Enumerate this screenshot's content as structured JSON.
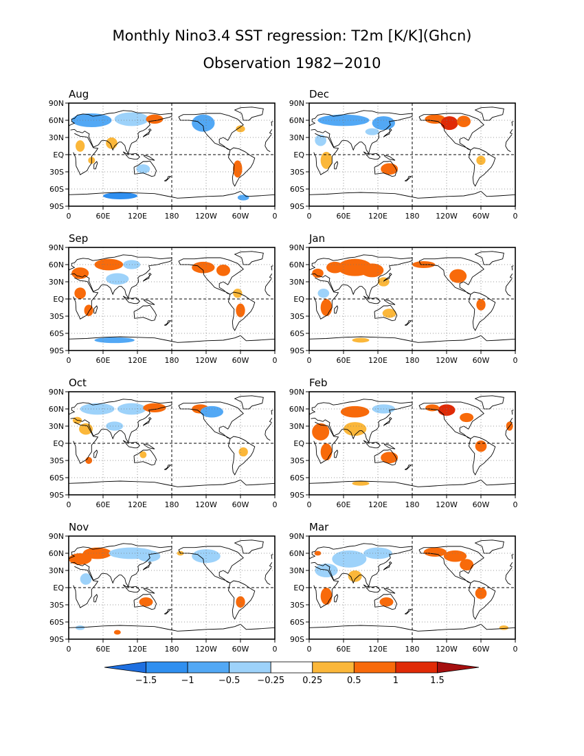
{
  "title_line1": "Monthly Nino3.4 SST regression: T2m [K/K](Ghcn)",
  "title_line2": "Observation 1982−2010",
  "colors": {
    "land_outline": "#000000",
    "dash": "#000000",
    "dot_grid": "#777777",
    "bins": [
      "#1e6fe0",
      "#2f8ff0",
      "#52a8f5",
      "#9dd2fa",
      "#ffffff",
      "#fbb73a",
      "#f86a0a",
      "#e02a06",
      "#a50f0f"
    ]
  },
  "chart_data": {
    "type": "heatmap",
    "title": "Monthly Nino3.4 SST regression: T2m [K/K](Ghcn)",
    "subtitle": "Observation 1982−2010",
    "units": "K/K",
    "x_ticks": [
      "0",
      "60E",
      "120E",
      "180",
      "120W",
      "60W",
      "0"
    ],
    "y_ticks": [
      "90N",
      "60N",
      "30N",
      "EQ",
      "30S",
      "60S",
      "90S"
    ],
    "colorbar": {
      "levels": [
        "−1.5",
        "−1",
        "−0.5",
        "−0.25",
        "0.25",
        "0.5",
        "1",
        "1.5"
      ],
      "level_values": [
        -1.5,
        -1,
        -0.5,
        -0.25,
        0.25,
        0.5,
        1,
        1.5
      ]
    },
    "panels": [
      {
        "month": "Aug",
        "blobs": [
          [
            40,
            60,
            35,
            12,
            -0.6
          ],
          [
            110,
            62,
            30,
            12,
            -0.4
          ],
          [
            150,
            62,
            15,
            8,
            0.7
          ],
          [
            235,
            55,
            20,
            15,
            -0.6
          ],
          [
            20,
            15,
            8,
            10,
            0.3
          ],
          [
            75,
            20,
            10,
            10,
            0.3
          ],
          [
            295,
            -25,
            8,
            15,
            0.6
          ],
          [
            130,
            -25,
            12,
            8,
            -0.4
          ],
          [
            90,
            -72,
            30,
            6,
            -1.1
          ],
          [
            305,
            -75,
            10,
            5,
            -0.7
          ],
          [
            300,
            45,
            8,
            6,
            0.3
          ],
          [
            40,
            -10,
            6,
            6,
            0.3
          ]
        ]
      },
      {
        "month": "Dec",
        "blobs": [
          [
            60,
            60,
            45,
            10,
            -0.7
          ],
          [
            130,
            55,
            20,
            12,
            -0.6
          ],
          [
            220,
            62,
            18,
            8,
            0.9
          ],
          [
            245,
            55,
            15,
            12,
            1.3
          ],
          [
            270,
            58,
            12,
            10,
            0.8
          ],
          [
            20,
            25,
            10,
            10,
            -0.4
          ],
          [
            30,
            -10,
            10,
            15,
            0.4
          ],
          [
            140,
            -25,
            15,
            10,
            0.6
          ],
          [
            300,
            -10,
            8,
            8,
            0.3
          ],
          [
            110,
            40,
            12,
            6,
            -0.4
          ]
        ]
      },
      {
        "month": "Sep",
        "blobs": [
          [
            20,
            45,
            15,
            10,
            0.7
          ],
          [
            70,
            60,
            25,
            10,
            0.6
          ],
          [
            110,
            60,
            15,
            8,
            -0.3
          ],
          [
            85,
            35,
            20,
            10,
            -0.4
          ],
          [
            235,
            55,
            20,
            10,
            0.6
          ],
          [
            270,
            50,
            12,
            10,
            0.7
          ],
          [
            20,
            10,
            10,
            10,
            0.6
          ],
          [
            35,
            -20,
            8,
            10,
            0.7
          ],
          [
            300,
            -20,
            8,
            12,
            0.7
          ],
          [
            80,
            -72,
            35,
            5,
            -0.6
          ],
          [
            295,
            10,
            8,
            8,
            0.4
          ]
        ]
      },
      {
        "month": "Jan",
        "blobs": [
          [
            80,
            55,
            30,
            15,
            0.9
          ],
          [
            110,
            50,
            20,
            12,
            0.8
          ],
          [
            45,
            55,
            15,
            10,
            0.6
          ],
          [
            15,
            45,
            10,
            8,
            0.5
          ],
          [
            200,
            60,
            20,
            6,
            0.6
          ],
          [
            260,
            40,
            15,
            12,
            0.6
          ],
          [
            130,
            30,
            10,
            8,
            0.4
          ],
          [
            30,
            -15,
            10,
            15,
            0.6
          ],
          [
            300,
            -10,
            8,
            10,
            0.6
          ],
          [
            140,
            -25,
            12,
            8,
            0.4
          ],
          [
            90,
            -72,
            15,
            4,
            0.3
          ],
          [
            25,
            10,
            10,
            8,
            -0.4
          ]
        ]
      },
      {
        "month": "Oct",
        "blobs": [
          [
            50,
            60,
            30,
            10,
            -0.4
          ],
          [
            110,
            60,
            25,
            10,
            -0.4
          ],
          [
            150,
            62,
            20,
            8,
            0.6
          ],
          [
            230,
            60,
            15,
            8,
            0.7
          ],
          [
            250,
            55,
            20,
            10,
            -0.6
          ],
          [
            30,
            25,
            12,
            10,
            0.3
          ],
          [
            80,
            30,
            15,
            8,
            -0.4
          ],
          [
            130,
            -20,
            6,
            6,
            0.4
          ],
          [
            305,
            -15,
            8,
            8,
            0.3
          ],
          [
            35,
            -30,
            6,
            6,
            0.5
          ],
          [
            15,
            40,
            8,
            6,
            0.4
          ]
        ]
      },
      {
        "month": "Feb",
        "blobs": [
          [
            80,
            55,
            25,
            10,
            0.5
          ],
          [
            130,
            60,
            20,
            8,
            -0.5
          ],
          [
            240,
            58,
            15,
            10,
            1.4
          ],
          [
            215,
            62,
            12,
            6,
            0.8
          ],
          [
            275,
            45,
            12,
            8,
            0.5
          ],
          [
            20,
            20,
            15,
            15,
            0.7
          ],
          [
            30,
            -15,
            10,
            15,
            0.7
          ],
          [
            80,
            25,
            20,
            12,
            0.4
          ],
          [
            140,
            -25,
            15,
            10,
            0.6
          ],
          [
            300,
            -5,
            10,
            10,
            0.6
          ],
          [
            90,
            -70,
            15,
            4,
            0.4
          ],
          [
            350,
            30,
            6,
            8,
            0.6
          ]
        ]
      },
      {
        "month": "Nov",
        "blobs": [
          [
            20,
            50,
            20,
            10,
            0.8
          ],
          [
            50,
            60,
            25,
            10,
            0.6
          ],
          [
            110,
            60,
            40,
            10,
            -0.4
          ],
          [
            140,
            55,
            20,
            10,
            -0.5
          ],
          [
            240,
            55,
            25,
            12,
            -0.5
          ],
          [
            30,
            15,
            10,
            10,
            -0.3
          ],
          [
            135,
            -25,
            12,
            8,
            0.7
          ],
          [
            300,
            -25,
            8,
            10,
            0.5
          ],
          [
            85,
            -78,
            6,
            4,
            0.5
          ],
          [
            20,
            -70,
            8,
            4,
            -0.3
          ],
          [
            195,
            60,
            6,
            4,
            0.4
          ]
        ]
      },
      {
        "month": "Mar",
        "blobs": [
          [
            30,
            30,
            20,
            12,
            -0.5
          ],
          [
            70,
            50,
            30,
            15,
            -0.4
          ],
          [
            120,
            60,
            25,
            10,
            -0.4
          ],
          [
            220,
            62,
            20,
            8,
            0.7
          ],
          [
            255,
            55,
            20,
            10,
            0.9
          ],
          [
            275,
            40,
            12,
            10,
            0.6
          ],
          [
            30,
            -15,
            10,
            15,
            0.7
          ],
          [
            80,
            20,
            12,
            10,
            0.4
          ],
          [
            135,
            -25,
            12,
            8,
            0.6
          ],
          [
            300,
            -10,
            10,
            10,
            0.6
          ],
          [
            15,
            60,
            6,
            4,
            0.6
          ],
          [
            340,
            -70,
            8,
            4,
            0.4
          ]
        ]
      }
    ]
  }
}
